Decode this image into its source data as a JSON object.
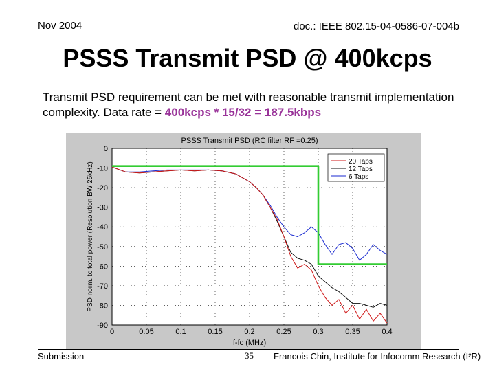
{
  "header": {
    "date": "Nov 2004",
    "doc_id": "doc.: IEEE 802.15-04-0586-07-004b"
  },
  "slide": {
    "title": "PSSS Transmit PSD @ 400kcps",
    "body_lead": "Transmit PSD requirement can be met with reasonable transmit implementation complexity. Data rate = ",
    "body_highlight": "400kcps * 15/32 = 187.5kbps",
    "highlight_color": "#993399"
  },
  "footer": {
    "left": "Submission",
    "page": "35",
    "right": "Francois Chin, Institute for Infocomm Research (I²R)"
  },
  "chart_data": {
    "type": "line",
    "title": "PSSS Transmit PSD (RC filter RF =0.25)",
    "xlabel": "f-fc (MHz)",
    "ylabel": "PSD norm. to total power (Resolution BW 25kHz)",
    "xlim": [
      0,
      0.4
    ],
    "ylim": [
      -90,
      0
    ],
    "x_ticks": [
      0,
      0.05,
      0.1,
      0.15,
      0.2,
      0.25,
      0.3,
      0.35,
      0.4
    ],
    "x_tick_labels": [
      "0",
      "0.05",
      "0.1",
      "0.15",
      "0.2",
      "0.25",
      "0.3",
      "0.35",
      "0.4"
    ],
    "y_ticks": [
      0,
      -10,
      -20,
      -30,
      -40,
      -50,
      -60,
      -70,
      -80,
      -90
    ],
    "y_tick_labels": [
      "0",
      "-10",
      "-20",
      "-30",
      "-40",
      "-50",
      "-60",
      "-70",
      "-80",
      "-90"
    ],
    "legend": [
      "20 Taps",
      "12 Taps",
      "6 Taps"
    ],
    "legend_position": "top-right",
    "grid": true,
    "colors": {
      "20 Taps": "#d01818",
      "12 Taps": "#111111",
      "6 Taps": "#1a2ad0",
      "mask": "#33cc33",
      "frame": "#c8c8c8"
    },
    "series": [
      {
        "name": "20 Taps",
        "x": [
          0,
          0.02,
          0.04,
          0.06,
          0.08,
          0.1,
          0.12,
          0.14,
          0.16,
          0.18,
          0.2,
          0.21,
          0.22,
          0.23,
          0.24,
          0.25,
          0.26,
          0.27,
          0.28,
          0.29,
          0.3,
          0.31,
          0.32,
          0.33,
          0.34,
          0.35,
          0.36,
          0.37,
          0.38,
          0.39,
          0.4
        ],
        "y": [
          -9.5,
          -12,
          -12.5,
          -12,
          -11.5,
          -11,
          -11.5,
          -11,
          -11.5,
          -13,
          -17,
          -20,
          -24,
          -30,
          -36,
          -45,
          -55,
          -61,
          -59,
          -62,
          -70,
          -76,
          -80,
          -77,
          -84,
          -80,
          -87,
          -82,
          -88,
          -84,
          -89
        ]
      },
      {
        "name": "12 Taps",
        "x": [
          0,
          0.02,
          0.04,
          0.06,
          0.08,
          0.1,
          0.12,
          0.14,
          0.16,
          0.18,
          0.2,
          0.21,
          0.22,
          0.23,
          0.24,
          0.25,
          0.26,
          0.27,
          0.28,
          0.29,
          0.3,
          0.31,
          0.32,
          0.33,
          0.34,
          0.35,
          0.36,
          0.37,
          0.38,
          0.39,
          0.4
        ],
        "y": [
          -9.5,
          -12,
          -12.5,
          -12,
          -11.5,
          -11,
          -11.5,
          -11,
          -11.5,
          -13,
          -17,
          -20,
          -24,
          -30,
          -37,
          -45,
          -53,
          -56,
          -57,
          -59,
          -65,
          -68,
          -71,
          -73,
          -76,
          -79,
          -79,
          -80,
          -81,
          -79,
          -80
        ]
      },
      {
        "name": "6 Taps",
        "x": [
          0,
          0.02,
          0.04,
          0.06,
          0.08,
          0.1,
          0.12,
          0.14,
          0.16,
          0.18,
          0.2,
          0.21,
          0.22,
          0.23,
          0.24,
          0.25,
          0.26,
          0.27,
          0.28,
          0.29,
          0.3,
          0.31,
          0.32,
          0.33,
          0.34,
          0.35,
          0.36,
          0.37,
          0.38,
          0.39,
          0.4
        ],
        "y": [
          -9.5,
          -12,
          -12,
          -11.5,
          -11,
          -11,
          -11,
          -11,
          -11.5,
          -13,
          -17,
          -20,
          -24,
          -29,
          -35,
          -40,
          -44,
          -45,
          -43,
          -40,
          -43,
          -49,
          -54,
          -49,
          -48,
          -51,
          -57,
          -54,
          -49,
          -52,
          -54
        ]
      },
      {
        "name": "mask",
        "x": [
          0,
          0.3,
          0.3,
          0.4
        ],
        "y": [
          -9,
          -9,
          -59,
          -59
        ]
      }
    ]
  }
}
